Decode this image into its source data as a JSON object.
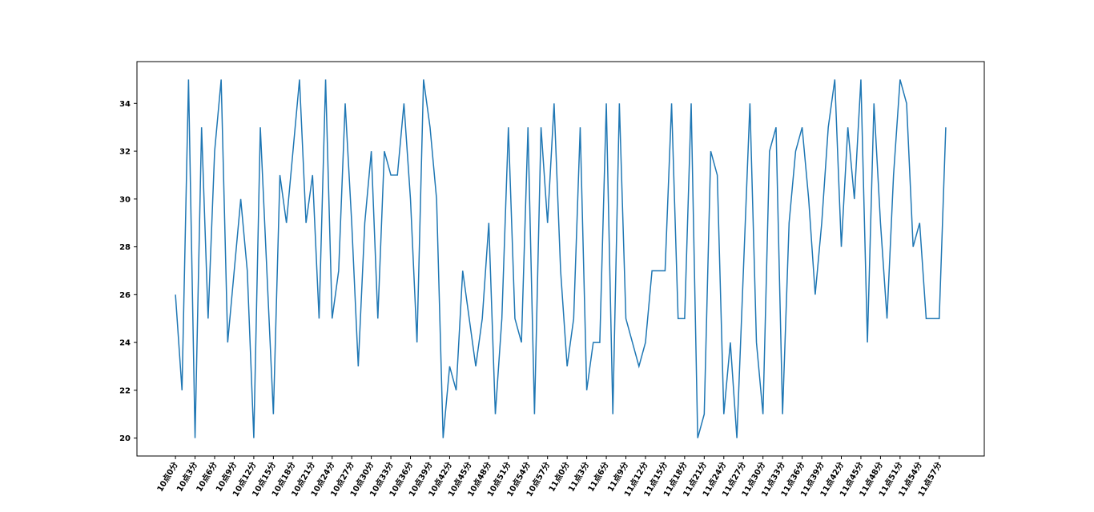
{
  "chart_data": {
    "type": "line",
    "categories": [
      "10点0分",
      null,
      null,
      "10点3分",
      null,
      null,
      "10点6分",
      null,
      null,
      "10点9分",
      null,
      null,
      "10点12分",
      null,
      null,
      "10点15分",
      null,
      null,
      "10点18分",
      null,
      null,
      "10点21分",
      null,
      null,
      "10点24分",
      null,
      null,
      "10点27分",
      null,
      null,
      "10点30分",
      null,
      null,
      "10点33分",
      null,
      null,
      "10点36分",
      null,
      null,
      "10点39分",
      null,
      null,
      "10点42分",
      null,
      null,
      "10点45分",
      null,
      null,
      "10点48分",
      null,
      null,
      "10点51分",
      null,
      null,
      "10点54分",
      null,
      null,
      "10点57分",
      null,
      null,
      "11点0分",
      null,
      null,
      "11点3分",
      null,
      null,
      "11点6分",
      null,
      null,
      "11点9分",
      null,
      null,
      "11点12分",
      null,
      null,
      "11点15分",
      null,
      null,
      "11点18分",
      null,
      null,
      "11点21分",
      null,
      null,
      "11点24分",
      null,
      null,
      "11点27分",
      null,
      null,
      "11点30分",
      null,
      null,
      "11点33分",
      null,
      null,
      "11点36分",
      null,
      null,
      "11点39分",
      null,
      null,
      "11点42分",
      null,
      null,
      "11点45分",
      null,
      null,
      "11点48分",
      null,
      null,
      "11点51分",
      null,
      null,
      "11点54分",
      null,
      null,
      "11点57分",
      null
    ],
    "values": [
      26,
      22,
      35,
      20,
      33,
      25,
      32,
      35,
      24,
      27,
      30,
      27,
      20,
      33,
      27,
      21,
      31,
      29,
      32,
      35,
      29,
      31,
      25,
      35,
      25,
      27,
      34,
      29,
      23,
      29,
      32,
      25,
      32,
      31,
      31,
      34,
      30,
      24,
      35,
      33,
      30,
      20,
      23,
      22,
      27,
      25,
      23,
      25,
      29,
      21,
      25,
      33,
      25,
      24,
      33,
      21,
      33,
      29,
      34,
      27,
      23,
      25,
      33,
      22,
      24,
      24,
      34,
      21,
      34,
      25,
      24,
      23,
      24,
      27,
      27,
      27,
      34,
      25,
      25,
      34,
      20,
      21,
      32,
      31,
      21,
      24,
      20,
      27,
      34,
      24,
      21,
      32,
      33,
      21,
      29,
      32,
      33,
      30,
      26,
      29,
      33,
      35,
      28,
      33,
      30,
      35,
      24,
      34,
      29,
      25,
      31,
      35,
      34,
      28,
      29,
      25,
      25,
      25,
      33
    ],
    "color": "#1f77b4",
    "ylim": [
      19.25,
      35.75
    ],
    "yticks": [
      20,
      22,
      24,
      26,
      28,
      30,
      32,
      34
    ]
  }
}
